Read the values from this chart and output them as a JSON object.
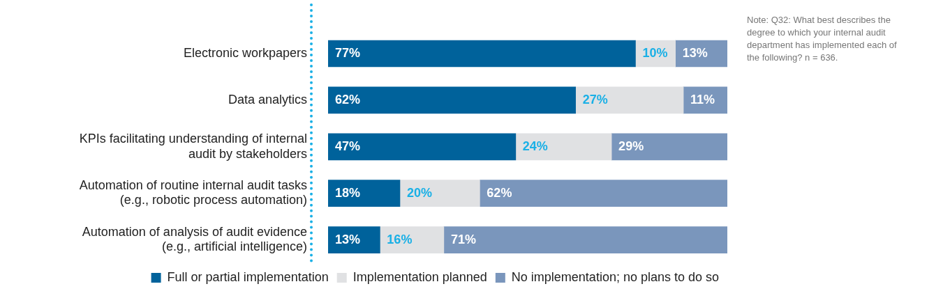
{
  "chart_data": {
    "type": "bar",
    "orientation": "horizontal",
    "stacked": true,
    "legend": "bottom",
    "tick_labels": "y",
    "categories": [
      "Electronic workpapers",
      "Data analytics",
      "KPIs facilitating understanding of internal audit by stakeholders",
      "Automation of routine internal audit tasks (e.g., robotic process automation)",
      "Automation of analysis of audit evidence (e.g., artificial intelligence)"
    ],
    "series": [
      {
        "name": "Full or partial implementation",
        "color": "#00629b",
        "values": [
          77,
          62,
          47,
          18,
          13
        ],
        "value_labels": [
          "77%",
          "62%",
          "47%",
          "18%",
          "13%"
        ]
      },
      {
        "name": "Implementation planned",
        "color": "#e0e1e3",
        "values": [
          10,
          27,
          24,
          20,
          16
        ],
        "value_labels": [
          "10%",
          "27%",
          "24%",
          "20%",
          "16%"
        ]
      },
      {
        "name": "No implementation; no plans to do so",
        "color": "#7a96bc",
        "values": [
          13,
          11,
          29,
          62,
          71
        ],
        "value_labels": [
          "13%",
          "11%",
          "29%",
          "62%",
          "71%"
        ]
      }
    ],
    "annotations": [
      "Note: Q32: What best describes the degree to which your internal audit department has implemented each of the following? n = 636."
    ]
  }
}
